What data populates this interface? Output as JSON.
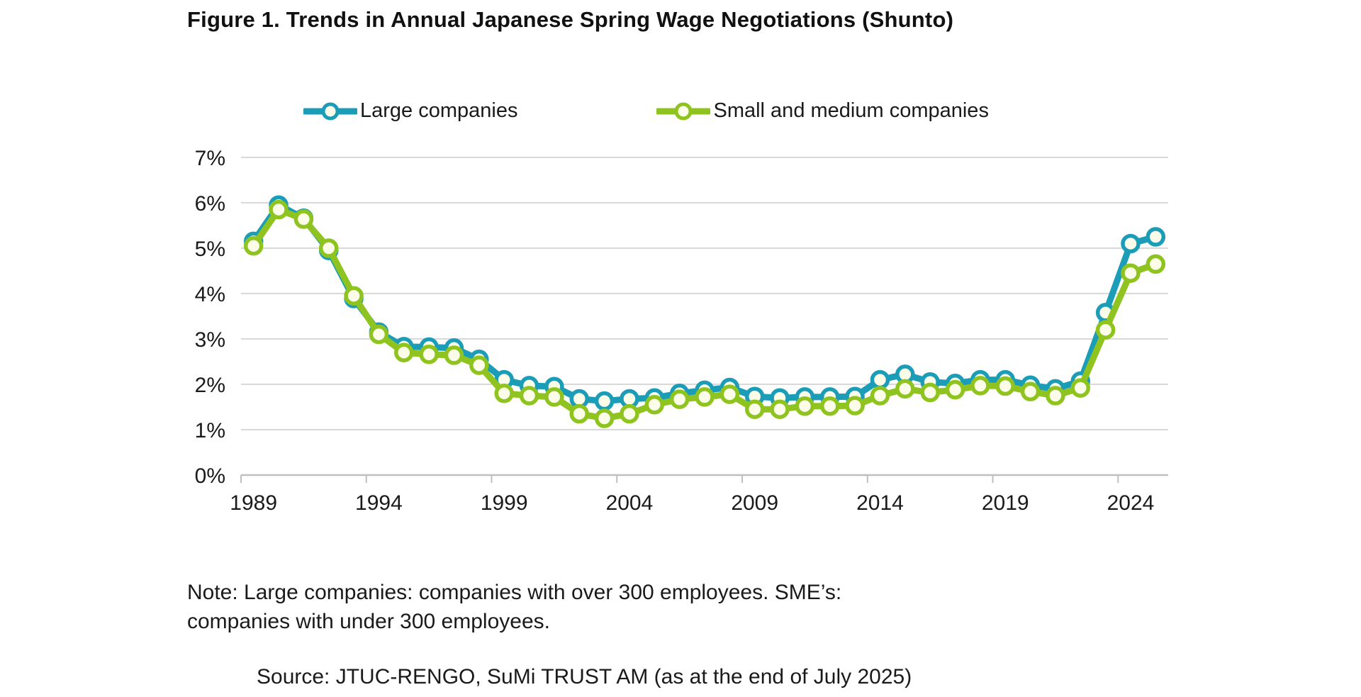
{
  "title": "Figure 1. Trends in Annual Japanese Spring Wage Negotiations (Shunto)",
  "note_line1": "Note: Large companies: companies with over 300 employees.  SME’s:",
  "note_line2": "companies with under 300 employees.",
  "source": "Source: JTUC-RENGO, SuMi TRUST AM (as at the end of July 2025)",
  "chart_data": {
    "type": "line",
    "title": "Figure 1. Trends in Annual Japanese Spring Wage Negotiations (Shunto)",
    "x": [
      1989,
      1990,
      1991,
      1992,
      1993,
      1994,
      1995,
      1996,
      1997,
      1998,
      1999,
      2000,
      2001,
      2002,
      2003,
      2004,
      2005,
      2006,
      2007,
      2008,
      2009,
      2010,
      2011,
      2012,
      2013,
      2014,
      2015,
      2016,
      2017,
      2018,
      2019,
      2020,
      2021,
      2022,
      2023,
      2024,
      2025
    ],
    "series": [
      {
        "name": "Large companies",
        "color": "#1b9db8",
        "values": [
          5.15,
          5.95,
          5.66,
          4.95,
          3.89,
          3.15,
          2.83,
          2.82,
          2.8,
          2.55,
          2.1,
          1.97,
          1.95,
          1.68,
          1.63,
          1.68,
          1.7,
          1.8,
          1.87,
          1.93,
          1.73,
          1.7,
          1.72,
          1.72,
          1.73,
          2.1,
          2.22,
          2.05,
          2.02,
          2.1,
          2.1,
          1.98,
          1.9,
          2.07,
          3.58,
          5.1,
          5.25
        ]
      },
      {
        "name": "Small and medium companies",
        "color": "#8fc31f",
        "values": [
          5.05,
          5.85,
          5.64,
          5.0,
          3.95,
          3.1,
          2.7,
          2.66,
          2.64,
          2.42,
          1.8,
          1.75,
          1.72,
          1.35,
          1.25,
          1.35,
          1.55,
          1.67,
          1.72,
          1.78,
          1.45,
          1.45,
          1.52,
          1.52,
          1.53,
          1.75,
          1.9,
          1.82,
          1.88,
          1.97,
          1.96,
          1.84,
          1.75,
          1.92,
          3.2,
          4.45,
          4.65
        ]
      }
    ],
    "ylim": [
      0,
      7
    ],
    "ytick_labels": [
      "0%",
      "1%",
      "2%",
      "3%",
      "4%",
      "5%",
      "6%",
      "7%"
    ],
    "xticks": [
      1989,
      1994,
      1999,
      2004,
      2009,
      2014,
      2019,
      2024
    ],
    "xtick_labels": [
      "1989",
      "1994",
      "1999",
      "2004",
      "2009",
      "2014",
      "2019",
      "2024"
    ],
    "grid": true,
    "legend_position": "top",
    "marker_fill": "#fcfde9",
    "grid_color": "#d9d9d9",
    "axis_color": "#bfbfbf",
    "text_color": "#1a1a1a"
  }
}
